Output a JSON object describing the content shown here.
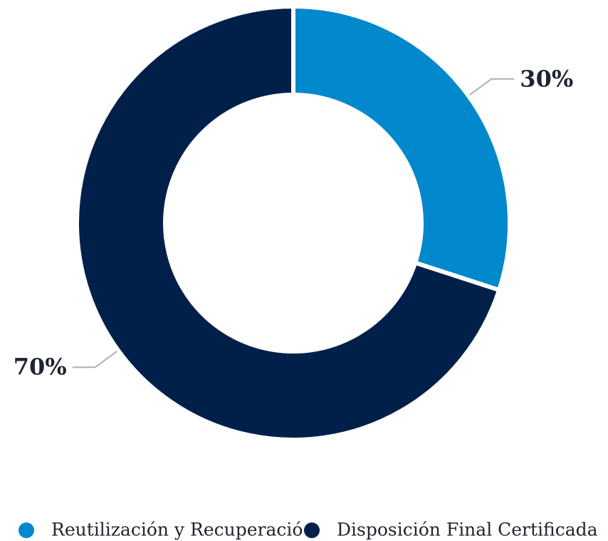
{
  "chart_data": {
    "type": "donut",
    "categories": [
      "Reutilización y Recuperació",
      "Disposición Final Certificada"
    ],
    "values": [
      30,
      70
    ],
    "value_labels": [
      "30%",
      "70%"
    ],
    "colors": [
      "#0288cc",
      "#00204a"
    ],
    "legend": "bottom"
  }
}
